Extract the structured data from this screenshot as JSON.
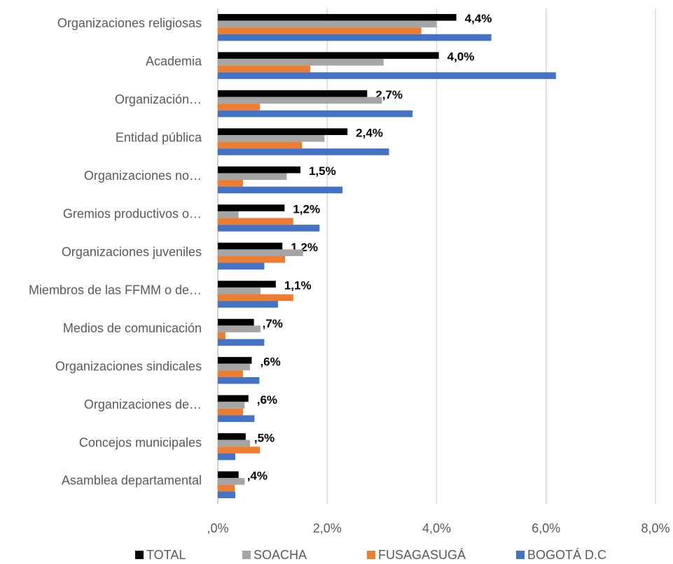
{
  "chart_data": {
    "type": "bar",
    "orientation": "horizontal",
    "categories": [
      "Organizaciones religiosas",
      "Academia",
      "Organización…",
      "Entidad pública",
      "Organizaciones no…",
      "Gremios productivos o…",
      "Organizaciones juveniles",
      "Miembros de las FFMM o de…",
      "Medios de comunicación",
      "Organizaciones sindicales",
      "Organizaciones de…",
      "Concejos municipales",
      "Asamblea departamental"
    ],
    "series": [
      {
        "name": "TOTAL",
        "color": "#000000",
        "values": [
          4.36,
          4.04,
          2.73,
          2.37,
          1.51,
          1.22,
          1.18,
          1.06,
          0.66,
          0.62,
          0.56,
          0.51,
          0.38
        ],
        "value_labels": [
          "4,4%",
          "4,0%",
          "2,7%",
          "2,4%",
          "1,5%",
          "1,2%",
          "1,2%",
          "1,1%",
          ",7%",
          ",6%",
          ",6%",
          ",5%",
          ",4%"
        ]
      },
      {
        "name": "SOACHA",
        "color": "#a5a5a5",
        "values": [
          4.0,
          3.03,
          3.0,
          1.95,
          1.26,
          0.38,
          1.56,
          0.78,
          0.78,
          0.59,
          0.49,
          0.59,
          0.49
        ]
      },
      {
        "name": "FUSAGASUGÁ",
        "color": "#ed7d31",
        "values": [
          3.72,
          1.69,
          0.77,
          1.54,
          0.46,
          1.38,
          1.23,
          1.38,
          0.14,
          0.46,
          0.46,
          0.77,
          0.31
        ]
      },
      {
        "name": "BOGOTÁ D.C",
        "color": "#4472c4",
        "values": [
          5.0,
          6.18,
          3.56,
          3.13,
          2.28,
          1.86,
          0.85,
          1.1,
          0.85,
          0.76,
          0.67,
          0.32,
          0.32
        ]
      }
    ],
    "xlim": [
      0,
      8
    ],
    "xticks": [
      {
        "value": 0,
        "label": ",0%"
      },
      {
        "value": 2,
        "label": "2,0%"
      },
      {
        "value": 4,
        "label": "4,0%"
      },
      {
        "value": 6,
        "label": "6,0%"
      },
      {
        "value": 8,
        "label": "8,0%"
      }
    ],
    "grid": true,
    "legend": "bottom"
  }
}
